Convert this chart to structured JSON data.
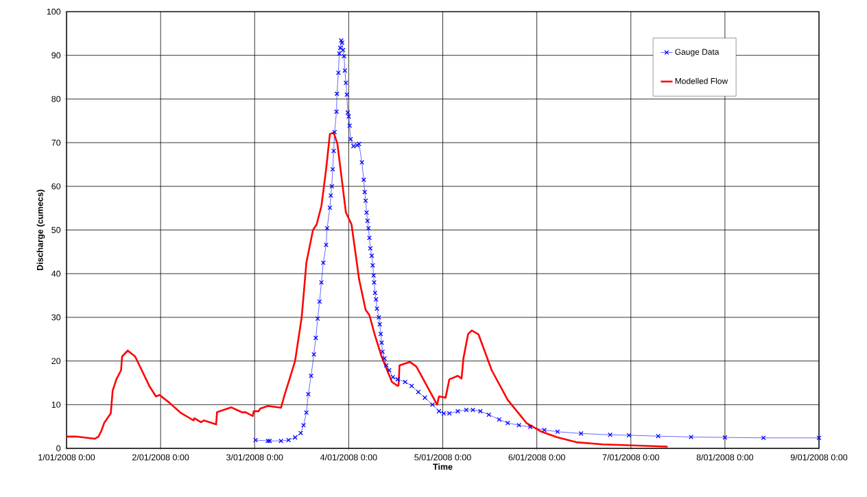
{
  "chart_data": {
    "type": "line",
    "xlabel": "Time",
    "ylabel": "Discharge (cumecs)",
    "xlim": [
      "2008-01-01T00:00",
      "2008-01-09T00:00"
    ],
    "xticks": [
      {
        "value": "2008-01-01T00:00",
        "label": "1/01/2008 0:00"
      },
      {
        "value": "2008-01-02T00:00",
        "label": "2/01/2008 0:00"
      },
      {
        "value": "2008-01-03T00:00",
        "label": "3/01/2008 0:00"
      },
      {
        "value": "2008-01-04T00:00",
        "label": "4/01/2008 0:00"
      },
      {
        "value": "2008-01-05T00:00",
        "label": "5/01/2008 0:00"
      },
      {
        "value": "2008-01-06T00:00",
        "label": "6/01/2008 0:00"
      },
      {
        "value": "2008-01-07T00:00",
        "label": "7/01/2008 0:00"
      },
      {
        "value": "2008-01-08T00:00",
        "label": "8/01/2008 0:00"
      },
      {
        "value": "2008-01-09T00:00",
        "label": "9/01/2008 0:00"
      }
    ],
    "ylim": [
      0,
      100
    ],
    "yticks": [
      0,
      10,
      20,
      30,
      40,
      50,
      60,
      70,
      80,
      90,
      100
    ],
    "grid": true,
    "legend": "top right",
    "series": [
      {
        "name": "Gauge Data",
        "color": "#0000ff",
        "marker": "cross",
        "x": [
          "2008-01-03T00:14",
          "2008-01-03T03:22",
          "2008-01-03T03:50",
          "2008-01-03T06:43",
          "2008-01-03T08:38",
          "2008-01-03T10:19",
          "2008-01-03T11:46",
          "2008-01-03T12:29",
          "2008-01-03T13:12",
          "2008-01-03T13:41",
          "2008-01-03T14:24",
          "2008-01-03T15:07",
          "2008-01-03T15:36",
          "2008-01-03T16:05",
          "2008-01-03T16:34",
          "2008-01-03T17:02",
          "2008-01-03T17:31",
          "2008-01-03T18:14",
          "2008-01-03T18:29",
          "2008-01-03T19:12",
          "2008-01-03T19:26",
          "2008-01-03T19:41",
          "2008-01-03T19:55",
          "2008-01-03T20:10",
          "2008-01-03T20:24",
          "2008-01-03T20:53",
          "2008-01-03T21:00",
          "2008-01-03T21:22",
          "2008-01-03T21:36",
          "2008-01-03T21:50",
          "2008-01-03T22:05",
          "2008-01-03T22:19",
          "2008-01-03T22:34",
          "2008-01-03T22:48",
          "2008-01-03T23:02",
          "2008-01-03T23:17",
          "2008-01-03T23:31",
          "2008-01-03T23:46",
          "2008-01-04T00:00",
          "2008-01-04T00:14",
          "2008-01-04T00:29",
          "2008-01-04T01:12",
          "2008-01-04T02:10",
          "2008-01-04T02:38",
          "2008-01-04T03:22",
          "2008-01-04T03:50",
          "2008-01-04T04:05",
          "2008-01-04T04:19",
          "2008-01-04T04:34",
          "2008-01-04T04:48",
          "2008-01-04T05:02",
          "2008-01-04T05:17",
          "2008-01-04T05:31",
          "2008-01-04T05:53",
          "2008-01-04T06:07",
          "2008-01-04T06:22",
          "2008-01-04T06:29",
          "2008-01-04T06:43",
          "2008-01-04T06:58",
          "2008-01-04T07:12",
          "2008-01-04T07:41",
          "2008-01-04T07:55",
          "2008-01-04T08:10",
          "2008-01-04T08:24",
          "2008-01-04T08:38",
          "2008-01-04T09:07",
          "2008-01-04T09:36",
          "2008-01-04T10:19",
          "2008-01-04T11:17",
          "2008-01-04T12:29",
          "2008-01-04T14:24",
          "2008-01-04T16:05",
          "2008-01-04T17:46",
          "2008-01-04T19:26",
          "2008-01-04T21:22",
          "2008-01-04T23:02",
          "2008-01-05T00:14",
          "2008-01-05T01:41",
          "2008-01-05T03:50",
          "2008-01-05T06:00",
          "2008-01-05T07:41",
          "2008-01-05T09:36",
          "2008-01-05T11:46",
          "2008-01-05T14:24",
          "2008-01-05T16:34",
          "2008-01-05T19:26",
          "2008-01-05T22:19",
          "2008-01-06T01:55",
          "2008-01-06T05:17",
          "2008-01-06T11:17",
          "2008-01-06T18:43",
          "2008-01-06T23:31",
          "2008-01-07T06:58",
          "2008-01-07T15:22",
          "2008-01-08T00:00",
          "2008-01-08T09:50",
          "2008-01-09T00:00"
        ],
        "values": [
          1.9,
          1.7,
          1.7,
          1.7,
          1.9,
          2.5,
          3.5,
          5.3,
          8.2,
          12.4,
          16.6,
          21.5,
          25.3,
          29.7,
          33.6,
          38.0,
          42.5,
          46.6,
          50.4,
          55.1,
          57.9,
          60.0,
          63.9,
          68.1,
          72.4,
          77.1,
          81.2,
          86.0,
          90.4,
          91.7,
          93.4,
          92.9,
          91.2,
          89.8,
          86.5,
          83.7,
          81.0,
          76.9,
          76.0,
          73.9,
          70.8,
          69.2,
          69.4,
          69.7,
          65.5,
          61.5,
          58.7,
          56.7,
          54.0,
          52.1,
          50.4,
          48.2,
          45.8,
          44.1,
          41.9,
          39.6,
          38.0,
          35.6,
          34.1,
          32.0,
          30.0,
          28.4,
          26.2,
          24.2,
          22.1,
          20.6,
          19.0,
          17.9,
          16.3,
          15.8,
          15.2,
          14.3,
          12.9,
          11.6,
          10.0,
          8.5,
          8.0,
          8.0,
          8.5,
          8.8,
          8.8,
          8.5,
          7.7,
          6.6,
          5.8,
          5.3,
          4.9,
          4.2,
          3.8,
          3.4,
          3.1,
          3.0,
          2.8,
          2.6,
          2.5,
          2.4,
          2.4
        ]
      },
      {
        "name": "Modelled Flow",
        "color": "#ff0000",
        "marker": "none",
        "x": [
          "2008-01-01T00:00",
          "2008-01-01T02:24",
          "2008-01-01T07:12",
          "2008-01-01T08:10",
          "2008-01-01T08:53",
          "2008-01-01T09:36",
          "2008-01-01T11:17",
          "2008-01-01T11:46",
          "2008-01-01T12:43",
          "2008-01-01T13:55",
          "2008-01-01T14:10",
          "2008-01-01T15:36",
          "2008-01-01T17:31",
          "2008-01-01T21:07",
          "2008-01-01T22:48",
          "2008-01-01T23:46",
          "2008-01-02T02:10",
          "2008-01-02T05:02",
          "2008-01-02T08:24",
          "2008-01-02T08:38",
          "2008-01-02T10:19",
          "2008-01-02T11:02",
          "2008-01-02T14:10",
          "2008-01-02T14:24",
          "2008-01-02T18:00",
          "2008-01-02T20:53",
          "2008-01-02T21:36",
          "2008-01-02T23:31",
          "2008-01-02T23:46",
          "2008-01-03T00:58",
          "2008-01-03T01:26",
          "2008-01-03T03:22",
          "2008-01-03T06:43",
          "2008-01-03T07:41",
          "2008-01-03T08:53",
          "2008-01-03T10:19",
          "2008-01-03T12:00",
          "2008-01-03T13:12",
          "2008-01-03T14:53",
          "2008-01-03T15:50",
          "2008-01-03T17:02",
          "2008-01-03T18:14",
          "2008-01-03T19:12",
          "2008-01-03T20:10",
          "2008-01-03T21:07",
          "2008-01-03T23:17",
          "2008-01-04T00:43",
          "2008-01-04T02:38",
          "2008-01-04T04:19",
          "2008-01-04T05:17",
          "2008-01-04T06:43",
          "2008-01-04T08:24",
          "2008-01-04T11:02",
          "2008-01-04T12:29",
          "2008-01-04T12:43",
          "2008-01-04T12:58",
          "2008-01-04T15:36",
          "2008-01-04T17:17",
          "2008-01-04T22:34",
          "2008-01-04T23:02",
          "2008-01-05T00:43",
          "2008-01-05T01:41",
          "2008-01-05T03:50",
          "2008-01-05T04:48",
          "2008-01-05T05:17",
          "2008-01-05T06:29",
          "2008-01-05T07:26",
          "2008-01-05T09:07",
          "2008-01-05T12:29",
          "2008-01-05T16:34",
          "2008-01-05T21:22",
          "2008-01-06T01:12",
          "2008-01-06T05:17",
          "2008-01-06T10:05",
          "2008-01-06T16:48",
          "2008-01-07T09:22"
        ],
        "values": [
          2.7,
          2.7,
          2.2,
          2.7,
          4.0,
          5.8,
          8.0,
          13.2,
          15.8,
          17.9,
          21.0,
          22.4,
          21.0,
          14.3,
          11.9,
          12.2,
          10.5,
          8.2,
          6.4,
          6.9,
          6.0,
          6.4,
          5.5,
          8.3,
          9.4,
          8.2,
          8.3,
          7.4,
          8.5,
          8.5,
          9.1,
          9.7,
          9.3,
          12.4,
          15.8,
          20.0,
          30.0,
          42.5,
          50.0,
          51.3,
          55.5,
          63.9,
          72.0,
          72.3,
          69.7,
          54.0,
          51.3,
          38.8,
          31.7,
          30.5,
          25.8,
          21.0,
          15.2,
          14.3,
          14.4,
          19.0,
          19.8,
          18.7,
          10.0,
          11.9,
          11.6,
          15.8,
          16.6,
          16.0,
          20.7,
          26.2,
          27.0,
          26.1,
          17.9,
          11.1,
          5.8,
          3.8,
          2.5,
          1.4,
          0.9,
          0.4
        ]
      }
    ]
  }
}
